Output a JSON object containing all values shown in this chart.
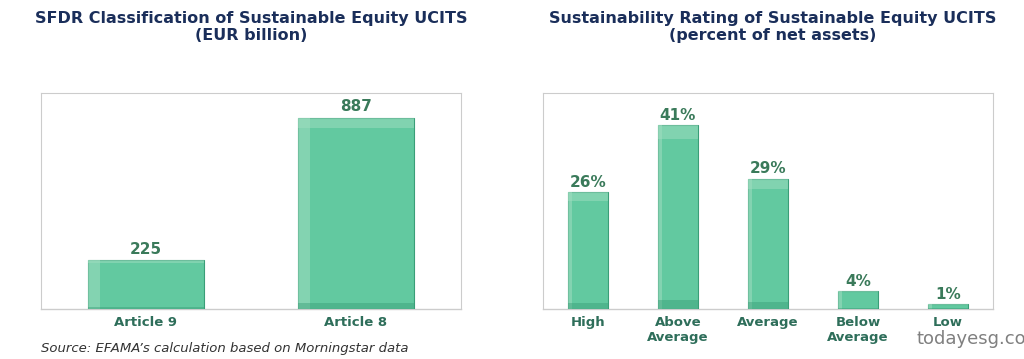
{
  "chart1": {
    "title": "SFDR Classification of Sustainable Equity UCITS\n(EUR billion)",
    "categories": [
      "Article 9",
      "Article 8"
    ],
    "values": [
      225,
      887
    ],
    "bar_color": "#62C9A0",
    "bar_light": "#a0ddc0",
    "bar_dark": "#3a9e78",
    "label_color": "#3a7a5a",
    "label_fontsize": 11,
    "title_color": "#1a2e5a",
    "tick_color": "#2e6e5a",
    "ylim": [
      0,
      1000
    ]
  },
  "chart2": {
    "title": "Sustainability Rating of Sustainable Equity UCITS\n(percent of net assets)",
    "categories": [
      "High",
      "Above\nAverage",
      "Average",
      "Below\nAverage",
      "Low"
    ],
    "values": [
      26,
      41,
      29,
      4,
      1
    ],
    "labels": [
      "26%",
      "41%",
      "29%",
      "4%",
      "1%"
    ],
    "bar_color": "#62C9A0",
    "bar_light": "#a0ddc0",
    "bar_dark": "#3a9e78",
    "label_color": "#3a7a5a",
    "label_fontsize": 11,
    "title_color": "#1a2e5a",
    "tick_color": "#2e6e5a",
    "ylim": [
      0,
      48
    ]
  },
  "source_text": "Source: EFAMA’s calculation based on Morningstar data",
  "source_fontsize": 9.5,
  "source_color": "#333333",
  "watermark_text": "todayesg.com",
  "watermark_color": "#555555",
  "bg_color": "#ffffff",
  "plot_bg_color": "#ffffff",
  "title_fontsize": 11.5,
  "tick_fontsize": 9.5,
  "spine_color": "#cccccc"
}
